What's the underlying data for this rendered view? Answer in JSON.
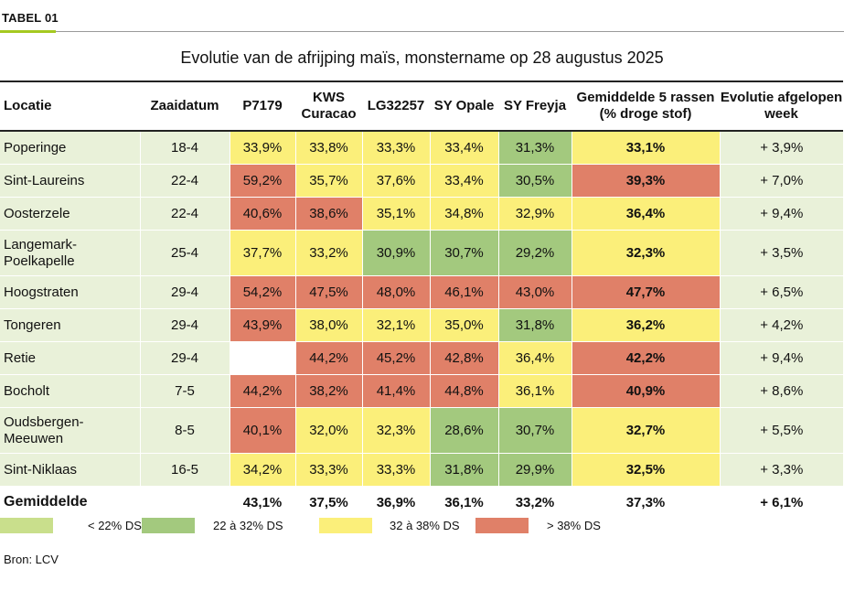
{
  "tag": "TABEL 01",
  "title": "Evolutie van de afrijping maïs, monstername op 28 augustus 2025",
  "headers": [
    "Locatie",
    "Zaaidatum",
    "P7179",
    "KWS Curacao",
    "LG32257",
    "SY Opale",
    "SY Freyja",
    "Gemiddelde 5 rassen (% droge stof)",
    "Evolutie afgelopen week"
  ],
  "colors": {
    "lightgreen": "#c9df8c",
    "green": "#a3c97e",
    "yellow": "#fbef7a",
    "red": "#e08068",
    "rowbg": "#e9f1d9"
  },
  "rows": [
    {
      "locatie": "Poperinge",
      "datum": "18-4",
      "vals": [
        "33,9%",
        "33,8%",
        "33,3%",
        "33,4%",
        "31,3%"
      ],
      "cls": [
        "yellow",
        "yellow",
        "yellow",
        "yellow",
        "green"
      ],
      "gem": "33,1%",
      "gemcls": "yellow",
      "evo": "+ 3,9%"
    },
    {
      "locatie": "Sint-Laureins",
      "datum": "22-4",
      "vals": [
        "59,2%",
        "35,7%",
        "37,6%",
        "33,4%",
        "30,5%"
      ],
      "cls": [
        "red",
        "yellow",
        "yellow",
        "yellow",
        "green"
      ],
      "gem": "39,3%",
      "gemcls": "red",
      "evo": "+ 7,0%"
    },
    {
      "locatie": "Oosterzele",
      "datum": "22-4",
      "vals": [
        "40,6%",
        "38,6%",
        "35,1%",
        "34,8%",
        "32,9%"
      ],
      "cls": [
        "red",
        "red",
        "yellow",
        "yellow",
        "yellow"
      ],
      "gem": "36,4%",
      "gemcls": "yellow",
      "evo": "+ 9,4%"
    },
    {
      "locatie": "Langemark-Poelkapelle",
      "datum": "25-4",
      "vals": [
        "37,7%",
        "33,2%",
        "30,9%",
        "30,7%",
        "29,2%"
      ],
      "cls": [
        "yellow",
        "yellow",
        "green",
        "green",
        "green"
      ],
      "gem": "32,3%",
      "gemcls": "yellow",
      "evo": "+ 3,5%"
    },
    {
      "locatie": "Hoogstraten",
      "datum": "29-4",
      "vals": [
        "54,2%",
        "47,5%",
        "48,0%",
        "46,1%",
        "43,0%"
      ],
      "cls": [
        "red",
        "red",
        "red",
        "red",
        "red"
      ],
      "gem": "47,7%",
      "gemcls": "red",
      "evo": "+ 6,5%"
    },
    {
      "locatie": "Tongeren",
      "datum": "29-4",
      "vals": [
        "43,9%",
        "38,0%",
        "32,1%",
        "35,0%",
        "31,8%"
      ],
      "cls": [
        "red",
        "yellow",
        "yellow",
        "yellow",
        "green"
      ],
      "gem": "36,2%",
      "gemcls": "yellow",
      "evo": "+ 4,2%"
    },
    {
      "locatie": "Retie",
      "datum": "29-4",
      "vals": [
        "",
        "44,2%",
        "45,2%",
        "42,8%",
        "36,4%"
      ],
      "cls": [
        "lightgreen",
        "red",
        "red",
        "red",
        "yellow"
      ],
      "gem": "42,2%",
      "gemcls": "red",
      "evo": "+ 9,4%"
    },
    {
      "locatie": "Bocholt",
      "datum": "7-5",
      "vals": [
        "44,2%",
        "38,2%",
        "41,4%",
        "44,8%",
        "36,1%"
      ],
      "cls": [
        "red",
        "red",
        "red",
        "red",
        "yellow"
      ],
      "gem": "40,9%",
      "gemcls": "red",
      "evo": "+ 8,6%"
    },
    {
      "locatie": "Oudsbergen-Meeuwen",
      "datum": "8-5",
      "vals": [
        "40,1%",
        "32,0%",
        "32,3%",
        "28,6%",
        "30,7%"
      ],
      "cls": [
        "red",
        "yellow",
        "yellow",
        "green",
        "green"
      ],
      "gem": "32,7%",
      "gemcls": "yellow",
      "evo": "+ 5,5%"
    },
    {
      "locatie": "Sint-Niklaas",
      "datum": "16-5",
      "vals": [
        "34,2%",
        "33,3%",
        "33,3%",
        "31,8%",
        "29,9%"
      ],
      "cls": [
        "yellow",
        "yellow",
        "yellow",
        "green",
        "green"
      ],
      "gem": "32,5%",
      "gemcls": "yellow",
      "evo": "+ 3,3%"
    }
  ],
  "summary": {
    "label": "Gemiddelde",
    "vals": [
      "43,1%",
      "37,5%",
      "36,9%",
      "36,1%",
      "33,2%"
    ],
    "gem": "37,3%",
    "evo": "+ 6,1%"
  },
  "legend": [
    {
      "label": "< 22% DS",
      "color": "#c9df8c"
    },
    {
      "label": "22 à 32% DS",
      "color": "#a3c97e"
    },
    {
      "label": "32 à 38% DS",
      "color": "#fbef7a"
    },
    {
      "label": "> 38% DS",
      "color": "#e08068"
    }
  ],
  "source": "Bron: LCV"
}
